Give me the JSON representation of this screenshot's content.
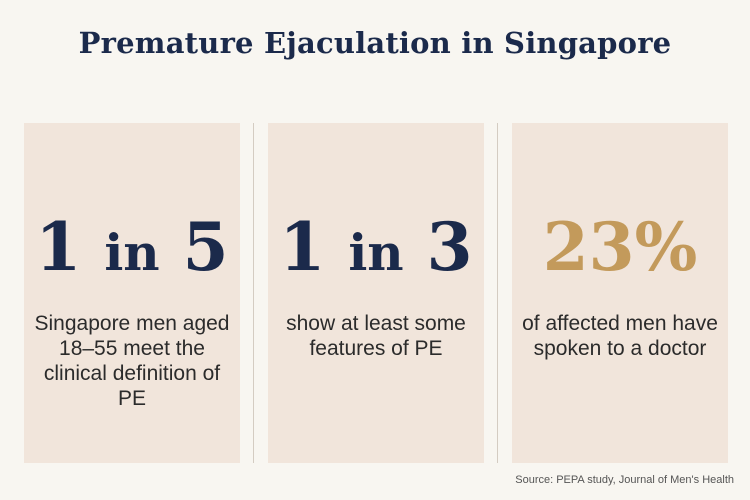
{
  "title": "Premature Ejaculation in Singapore",
  "stats": [
    {
      "big": "1",
      "small": "in",
      "big2": "5",
      "description": "Singapore men aged 18–55 meet the clinical definition of PE",
      "color": "#1b2a4b"
    },
    {
      "big": "1",
      "small": "in",
      "big2": "3",
      "description": "show at least some features of PE",
      "color": "#1b2a4b"
    },
    {
      "value": "23%",
      "description": "of affected men have spoken to a doctor",
      "color": "#c39a5b"
    }
  ],
  "source": "Source: PEPA study, Journal of Men's Health"
}
